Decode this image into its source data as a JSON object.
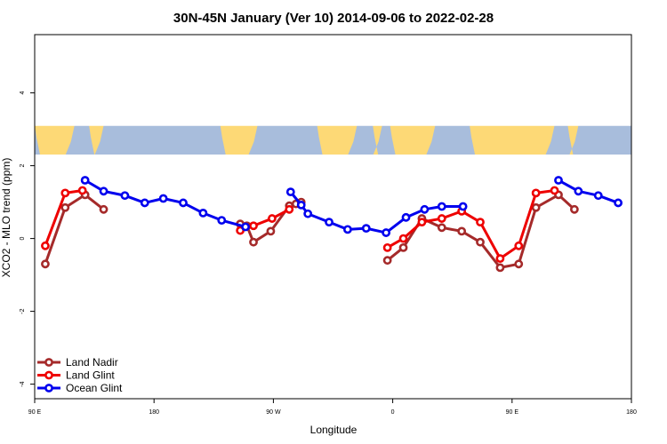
{
  "chart_data": {
    "type": "line",
    "title": "30N-45N January (Ver 10)   2014-09-06 to 2022-02-28",
    "xlabel": "Longitude",
    "ylabel": "XCO2 - MLO trend (ppm)",
    "xlim": [
      90,
      540
    ],
    "ylim": [
      -4.4,
      5.6
    ],
    "x_ticks": [
      {
        "value": 90,
        "label": "90 E"
      },
      {
        "value": 180,
        "label": "180"
      },
      {
        "value": 270,
        "label": "90 W"
      },
      {
        "value": 360,
        "label": "0"
      },
      {
        "value": 450,
        "label": "90 E"
      },
      {
        "value": 540,
        "label": "180"
      }
    ],
    "y_ticks": [
      {
        "value": -4,
        "label": "-4"
      },
      {
        "value": -2,
        "label": "-2"
      },
      {
        "value": 0,
        "label": "0"
      },
      {
        "value": 2,
        "label": "2"
      },
      {
        "value": 4,
        "label": "4"
      }
    ],
    "legend_position": "bottom-left",
    "inset": {
      "description": "world map strip 30N-45N",
      "y_range": [
        2.3,
        3.1
      ],
      "ocean_color": "#a8bddc",
      "land_color": "#fdd976"
    },
    "series": [
      {
        "name": "Land Nadir",
        "color": "#a52a2a",
        "segments": [
          [
            [
              98,
              -0.7
            ],
            [
              113,
              0.85
            ],
            [
              128,
              1.2
            ],
            [
              142,
              0.8
            ]
          ],
          [
            [
              245,
              0.4
            ],
            [
              250,
              0.35
            ],
            [
              255,
              -0.1
            ],
            [
              268,
              0.2
            ],
            [
              282,
              0.9
            ],
            [
              287,
              0.95
            ],
            [
              291,
              1.0
            ]
          ],
          [
            [
              356,
              -0.6
            ],
            [
              368,
              -0.25
            ],
            [
              382,
              0.55
            ],
            [
              397,
              0.3
            ],
            [
              412,
              0.2
            ],
            [
              426,
              -0.1
            ],
            [
              441,
              -0.8
            ],
            [
              455,
              -0.7
            ],
            [
              468,
              0.85
            ],
            [
              485,
              1.2
            ],
            [
              497,
              0.8
            ]
          ]
        ]
      },
      {
        "name": "Land Glint",
        "color": "#ee0000",
        "segments": [
          [
            [
              98,
              -0.2
            ],
            [
              113,
              1.25
            ],
            [
              126,
              1.32
            ]
          ],
          [
            [
              245,
              0.22
            ],
            [
              255,
              0.35
            ],
            [
              269,
              0.55
            ],
            [
              282,
              0.8
            ]
          ],
          [
            [
              356,
              -0.25
            ],
            [
              368,
              0.0
            ],
            [
              382,
              0.45
            ],
            [
              397,
              0.55
            ],
            [
              412,
              0.75
            ],
            [
              426,
              0.45
            ],
            [
              441,
              -0.55
            ],
            [
              455,
              -0.2
            ],
            [
              468,
              1.25
            ],
            [
              482,
              1.32
            ]
          ]
        ]
      },
      {
        "name": "Ocean Glint",
        "color": "#0000ee",
        "segments": [
          [
            [
              128,
              1.6
            ],
            [
              142,
              1.3
            ],
            [
              158,
              1.18
            ],
            [
              173,
              0.98
            ],
            [
              187,
              1.1
            ],
            [
              202,
              0.98
            ],
            [
              217,
              0.7
            ],
            [
              231,
              0.5
            ],
            [
              249,
              0.32
            ]
          ],
          [
            [
              283,
              1.28
            ],
            [
              291,
              0.92
            ],
            [
              296,
              0.68
            ],
            [
              312,
              0.45
            ],
            [
              326,
              0.25
            ],
            [
              340,
              0.28
            ],
            [
              355,
              0.16
            ],
            [
              370,
              0.58
            ],
            [
              384,
              0.8
            ],
            [
              397,
              0.88
            ],
            [
              413,
              0.88
            ]
          ],
          [
            [
              485,
              1.6
            ],
            [
              500,
              1.3
            ],
            [
              515,
              1.18
            ],
            [
              530,
              0.98
            ]
          ]
        ]
      }
    ]
  }
}
